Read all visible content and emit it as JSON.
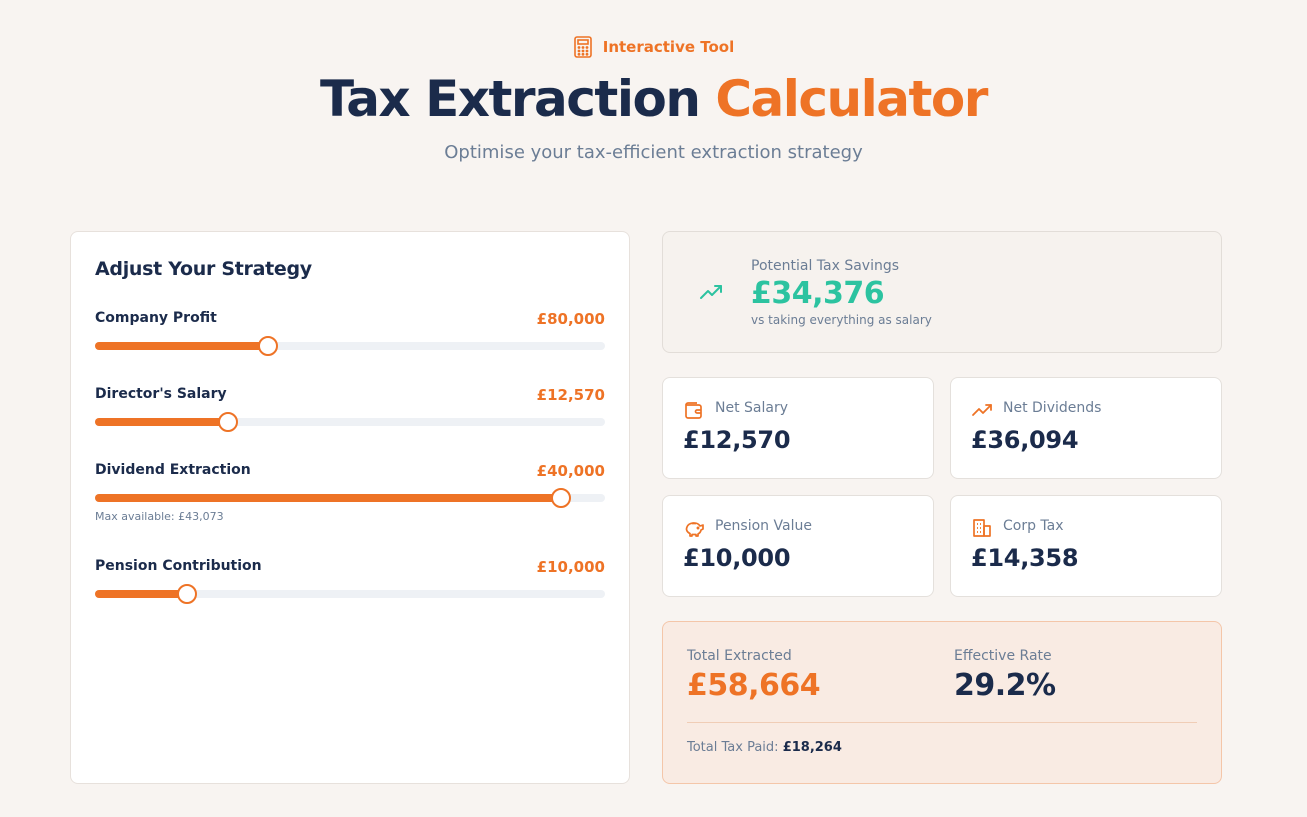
{
  "header": {
    "badge": "Interactive Tool",
    "title_main": "Tax Extraction",
    "title_accent": "Calculator",
    "subtitle": "Optimise your tax-efficient extraction strategy"
  },
  "strategy": {
    "title": "Adjust Your Strategy",
    "sliders": [
      {
        "label": "Company Profit",
        "value": "£80,000",
        "fraction": 0.34
      },
      {
        "label": "Director's Salary",
        "value": "£12,570",
        "fraction": 0.26
      },
      {
        "label": "Dividend Extraction",
        "value": "£40,000",
        "fraction": 0.914,
        "hint": "Max available: £43,073"
      },
      {
        "label": "Pension Contribution",
        "value": "£10,000",
        "fraction": 0.18
      }
    ]
  },
  "savings": {
    "label": "Potential Tax Savings",
    "value": "£34,376",
    "note": "vs taking everything as salary",
    "icon": "trending-up-icon",
    "color": "#2cc3a0"
  },
  "stats": [
    {
      "label": "Net Salary",
      "value": "£12,570",
      "icon": "wallet-icon"
    },
    {
      "label": "Net Dividends",
      "value": "£36,094",
      "icon": "trending-up-icon"
    },
    {
      "label": "Pension Value",
      "value": "£10,000",
      "icon": "piggy-bank-icon"
    },
    {
      "label": "Corp Tax",
      "value": "£14,358",
      "icon": "building-icon"
    }
  ],
  "totals": {
    "extracted_label": "Total Extracted",
    "extracted_value": "£58,664",
    "rate_label": "Effective Rate",
    "rate_value": "29.2%",
    "tax_paid_label": "Total Tax Paid:",
    "tax_paid_value": "£18,264"
  },
  "colors": {
    "accent": "#ee7326",
    "navy": "#1b2b4b",
    "teal": "#2cc3a0",
    "muted": "#6b7d95"
  }
}
